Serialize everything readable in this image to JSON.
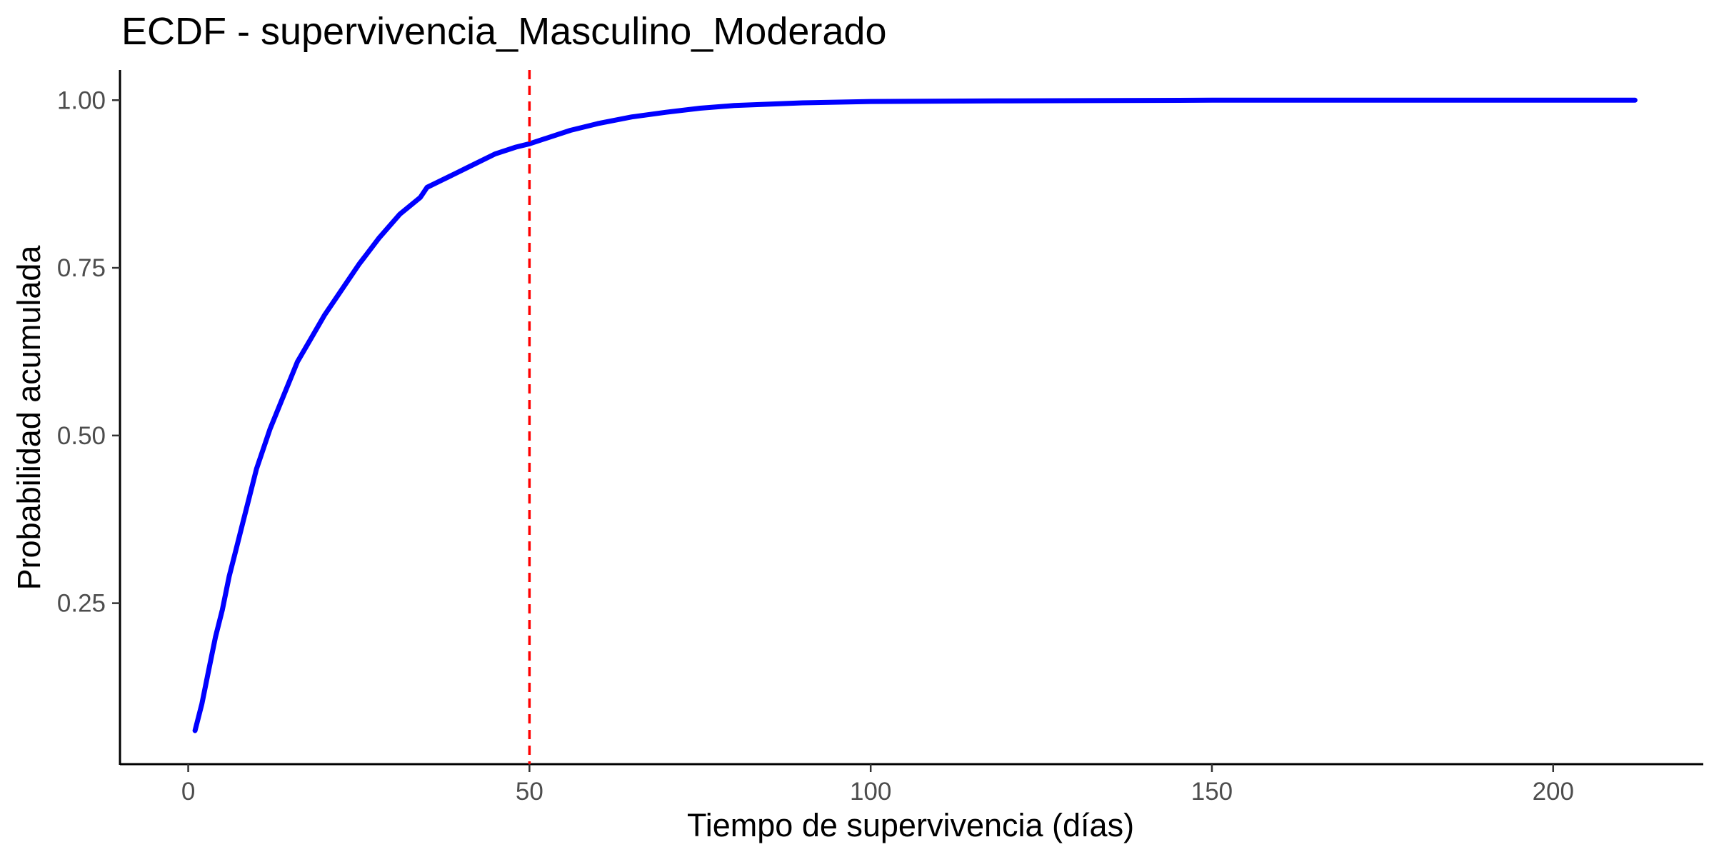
{
  "chart_data": {
    "type": "line",
    "title": "ECDF - supervivencia_Masculino_Moderado",
    "xlabel": "Tiempo de supervivencia (días)",
    "ylabel": "Probabilidad acumulada",
    "xlim": [
      -10,
      222
    ],
    "ylim": [
      0.01,
      1.045
    ],
    "x_ticks": [
      0,
      50,
      100,
      150,
      200
    ],
    "x_tick_labels": [
      "0",
      "50",
      "100",
      "150",
      "200"
    ],
    "y_ticks": [
      0.25,
      0.5,
      0.75,
      1.0
    ],
    "y_tick_labels": [
      "0.25",
      "0.50",
      "0.75",
      "1.00"
    ],
    "grid": false,
    "legend": "none",
    "series": [
      {
        "color": "#0000ff",
        "x": [
          1,
          2,
          3,
          4,
          5,
          6,
          7,
          8,
          9,
          10,
          12,
          14,
          16,
          18,
          20,
          22,
          25,
          28,
          31,
          34,
          35,
          38,
          41,
          45,
          48,
          50,
          53,
          56,
          60,
          65,
          70,
          75,
          80,
          90,
          100,
          120,
          150,
          180,
          212
        ],
        "y": [
          0.06,
          0.1,
          0.15,
          0.2,
          0.24,
          0.29,
          0.33,
          0.37,
          0.41,
          0.45,
          0.51,
          0.56,
          0.61,
          0.645,
          0.68,
          0.71,
          0.755,
          0.795,
          0.83,
          0.855,
          0.87,
          0.885,
          0.9,
          0.92,
          0.93,
          0.935,
          0.945,
          0.955,
          0.965,
          0.975,
          0.982,
          0.988,
          0.992,
          0.996,
          0.998,
          0.999,
          1.0,
          1.0,
          1.0
        ]
      }
    ],
    "reference_lines": [
      {
        "orientation": "vertical",
        "x": 50,
        "color": "#ff0000",
        "style": "dashed"
      }
    ]
  }
}
